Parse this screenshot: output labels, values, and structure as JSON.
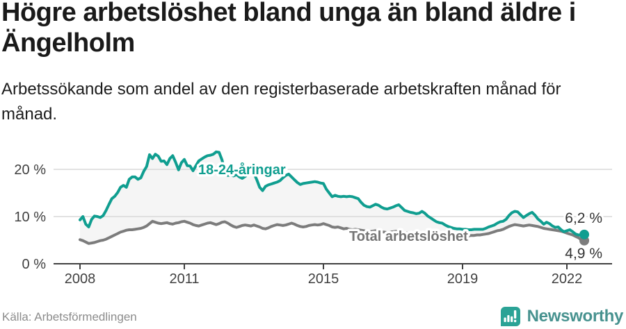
{
  "header": {
    "title_line1": "Högre arbetslöshet bland unga än bland äldre i",
    "title_line2": "Ängelholm",
    "subtitle_line1": "Arbetssökande som andel av den registerbaserade arbetskraften månad för",
    "subtitle_line2": "månad."
  },
  "footer": {
    "source": "Källa: Arbetsförmedlingen",
    "brand": "Newsworthy"
  },
  "colors": {
    "youth_line": "#109e90",
    "total_line": "#7c7c7c",
    "fill_between": "#f5f5f5",
    "gridline": "#d9d9d9",
    "axis": "#404040",
    "brand_mark": "#2ba396",
    "brand_text": "#47928f"
  },
  "chart_data": {
    "type": "line",
    "title": "Högre arbetslöshet bland unga än bland äldre i Ängelholm",
    "subtitle": "Arbetssökande som andel av den registerbaserade arbetskraften månad för månad.",
    "source": "Källa: Arbetsförmedlingen",
    "x_start_year": 2008,
    "x_step": "1 month",
    "x_end": "2022-07",
    "xticks": [
      2008,
      2011,
      2015,
      2019,
      2022
    ],
    "yticks": [
      {
        "value": 0,
        "label": "0 %"
      },
      {
        "value": 10,
        "label": "10 %"
      },
      {
        "value": 20,
        "label": "20 %"
      }
    ],
    "ylim": [
      0,
      25
    ],
    "grid": true,
    "legend_position": "inline-labels",
    "series": [
      {
        "name": "18-24-åringar",
        "color": "#109e90",
        "end_label": "6,2 %",
        "end_value": 6.2,
        "values": [
          9.3,
          10.0,
          8.4,
          7.8,
          9.4,
          10.1,
          10.0,
          9.8,
          10.2,
          11.3,
          12.6,
          13.8,
          14.3,
          15.1,
          16.2,
          16.6,
          16.2,
          17.9,
          18.4,
          18.4,
          17.9,
          18.2,
          19.6,
          20.6,
          23.1,
          22.3,
          23.2,
          22.8,
          21.7,
          21.8,
          21.0,
          22.3,
          22.9,
          21.5,
          19.9,
          21.4,
          22.1,
          20.8,
          20.7,
          19.7,
          20.8,
          21.8,
          22.2,
          22.6,
          22.9,
          23.0,
          23.2,
          23.7,
          23.6,
          22.0,
          19.5,
          18.7,
          18.8,
          18.6,
          18.9,
          18.4,
          18.1,
          18.5,
          19.0,
          19.1,
          19.2,
          17.8,
          16.2,
          15.5,
          16.4,
          16.7,
          16.9,
          17.1,
          17.3,
          17.6,
          18.2,
          18.7,
          19.0,
          18.4,
          17.8,
          17.2,
          16.8,
          17.0,
          17.1,
          17.2,
          17.3,
          17.4,
          17.3,
          17.1,
          17.0,
          15.8,
          15.0,
          14.2,
          14.5,
          14.3,
          14.2,
          14.3,
          14.2,
          14.3,
          14.2,
          14.0,
          13.8,
          13.0,
          12.4,
          12.1,
          12.0,
          12.3,
          12.6,
          12.4,
          12.0,
          11.7,
          11.6,
          11.8,
          12.0,
          12.3,
          12.5,
          11.9,
          11.3,
          11.1,
          10.9,
          10.8,
          10.6,
          10.7,
          11.1,
          10.7,
          10.1,
          9.7,
          9.3,
          8.9,
          8.7,
          8.6,
          8.2,
          7.9,
          7.7,
          7.5,
          7.4,
          7.4,
          7.3,
          7.3,
          7.2,
          7.2,
          7.3,
          7.3,
          7.3,
          7.3,
          7.5,
          7.8,
          8.0,
          8.2,
          8.6,
          8.9,
          9.0,
          9.4,
          10.2,
          10.8,
          11.1,
          11.0,
          10.4,
          9.8,
          10.2,
          10.6,
          10.9,
          10.3,
          9.5,
          9.0,
          8.4,
          8.8,
          8.5,
          8.0,
          7.7,
          7.8,
          7.2,
          6.8,
          7.0,
          7.2,
          6.8,
          6.3,
          6.1,
          6.0,
          6.2
        ]
      },
      {
        "name": "Total arbetslöshet",
        "color": "#7c7c7c",
        "end_label": "4,9 %",
        "end_value": 4.9,
        "values": [
          5.1,
          4.9,
          4.6,
          4.3,
          4.4,
          4.5,
          4.7,
          4.9,
          5.0,
          5.2,
          5.5,
          5.8,
          6.1,
          6.4,
          6.7,
          6.9,
          7.1,
          7.2,
          7.2,
          7.3,
          7.4,
          7.5,
          7.7,
          8.0,
          8.5,
          9.0,
          8.8,
          8.6,
          8.5,
          8.6,
          8.7,
          8.5,
          8.4,
          8.6,
          8.7,
          8.9,
          9.0,
          8.8,
          8.6,
          8.3,
          8.1,
          8.0,
          8.2,
          8.4,
          8.6,
          8.7,
          8.5,
          8.3,
          8.5,
          8.8,
          8.9,
          8.6,
          8.2,
          7.9,
          7.7,
          7.9,
          8.1,
          8.2,
          8.1,
          8.0,
          8.2,
          8.0,
          7.8,
          7.5,
          7.4,
          7.6,
          7.9,
          8.1,
          8.3,
          8.2,
          8.1,
          8.2,
          8.4,
          8.6,
          8.4,
          8.1,
          7.9,
          7.8,
          7.9,
          8.1,
          8.2,
          8.3,
          8.2,
          8.3,
          8.5,
          8.3,
          8.1,
          7.8,
          7.7,
          7.8,
          7.6,
          7.4,
          7.5,
          7.3,
          7.2,
          7.3,
          7.2,
          7.1,
          7.0,
          6.9,
          6.8,
          6.9,
          7.0,
          6.9,
          6.8,
          6.7,
          6.6,
          6.7,
          6.8,
          6.9,
          6.8,
          6.7,
          6.6,
          6.5,
          6.4,
          6.5,
          6.4,
          6.3,
          6.4,
          6.5,
          6.4,
          6.3,
          6.2,
          6.1,
          6.0,
          5.9,
          5.8,
          5.9,
          5.8,
          5.7,
          5.8,
          5.9,
          5.9,
          5.8,
          5.9,
          6.0,
          6.0,
          6.1,
          6.1,
          6.2,
          6.3,
          6.4,
          6.6,
          6.8,
          7.0,
          7.1,
          7.3,
          7.6,
          7.9,
          8.1,
          8.3,
          8.2,
          8.1,
          8.0,
          8.1,
          8.2,
          8.1,
          8.0,
          7.9,
          7.7,
          7.5,
          7.4,
          7.3,
          7.2,
          7.1,
          7.0,
          6.9,
          6.7,
          6.5,
          6.3,
          6.1,
          5.8,
          5.5,
          5.1,
          4.9
        ]
      }
    ]
  }
}
